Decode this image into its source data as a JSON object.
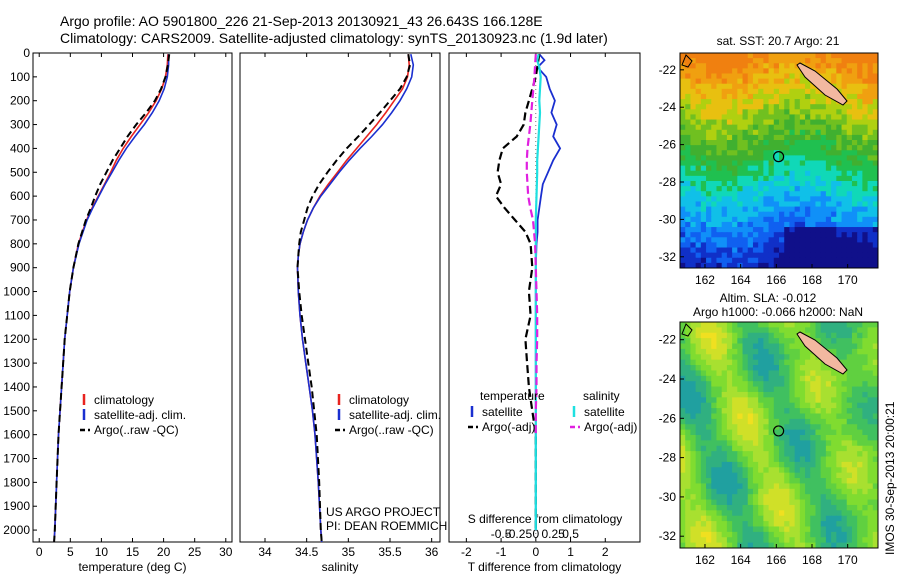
{
  "header": {
    "line1": "Argo profile: AO 5901800_226 21-Sep-2013 20130921_43 26.643S 166.128E",
    "line2": "Climatology: CARS2009. Satellite-adjusted climatology: synTS_20130923.nc (1.9d later)"
  },
  "colors": {
    "climatology": "#e8231f",
    "satellite_adj": "#1a2fd0",
    "argo": "#000000",
    "salinity_sat": "#1ee0e0",
    "salinity_argo": "#e020e0"
  },
  "chart_data": [
    {
      "type": "line",
      "xlabel": "temperature (deg C)",
      "ylabel": "",
      "xlim": [
        -1,
        31
      ],
      "ylim": [
        2050,
        0
      ],
      "x_ticks": [
        0,
        5,
        10,
        15,
        20,
        25,
        30
      ],
      "y_ticks": [
        0,
        100,
        200,
        300,
        400,
        500,
        600,
        700,
        800,
        900,
        1000,
        1100,
        1200,
        1300,
        1400,
        1500,
        1600,
        1700,
        1800,
        1900,
        2000
      ],
      "legend": [
        "climatology",
        "satellite-adj. clim.",
        "Argo(..raw -QC)"
      ],
      "series": [
        {
          "name": "climatology",
          "depth": [
            5,
            50,
            100,
            150,
            200,
            250,
            300,
            350,
            400,
            450,
            500,
            550,
            600,
            650,
            700,
            800,
            900,
            1000,
            1200,
            1400,
            1600,
            1800,
            2000,
            2050
          ],
          "values": [
            20.7,
            20.6,
            20.3,
            19.7,
            18.8,
            17.6,
            16.2,
            14.8,
            13.5,
            12.4,
            11.5,
            10.5,
            9.5,
            8.5,
            7.6,
            6.3,
            5.5,
            4.9,
            4.1,
            3.6,
            3.1,
            2.8,
            2.5,
            2.4
          ]
        },
        {
          "name": "satellite-adj. clim.",
          "depth": [
            5,
            50,
            100,
            150,
            200,
            250,
            300,
            350,
            400,
            450,
            500,
            550,
            600,
            650,
            700,
            800,
            900,
            1000,
            1200,
            1400,
            1600,
            1800,
            2000,
            2050
          ],
          "values": [
            20.8,
            20.8,
            20.6,
            20.1,
            19.3,
            18.2,
            16.9,
            15.4,
            14.0,
            12.8,
            11.7,
            10.6,
            9.6,
            8.6,
            7.7,
            6.4,
            5.5,
            4.9,
            4.1,
            3.6,
            3.1,
            2.8,
            2.5,
            2.4
          ]
        },
        {
          "name": "Argo(..raw -QC)",
          "depth": [
            5,
            50,
            100,
            150,
            200,
            250,
            300,
            350,
            400,
            450,
            500,
            550,
            600,
            650,
            700,
            800,
            900,
            1000,
            1200,
            1400,
            1600,
            1800,
            2000,
            2050
          ],
          "values": [
            20.9,
            20.7,
            20.3,
            19.6,
            18.6,
            17.2,
            15.6,
            14.2,
            13.0,
            11.8,
            10.8,
            9.8,
            9.0,
            8.3,
            7.5,
            6.3,
            5.5,
            4.9,
            4.1,
            3.6,
            3.1,
            2.8,
            2.5,
            2.4
          ]
        }
      ]
    },
    {
      "type": "line",
      "xlabel": "salinity",
      "ylabel": "",
      "xlim": [
        33.7,
        36.1
      ],
      "ylim": [
        2050,
        0
      ],
      "x_ticks": [
        34,
        34.5,
        35,
        35.5,
        36
      ],
      "legend": [
        "climatology",
        "satellite-adj. clim.",
        "Argo(..raw -QC)"
      ],
      "annotation": [
        "US ARGO PROJECT",
        "PI: DEAN ROEMMICH"
      ],
      "series": [
        {
          "name": "climatology",
          "depth": [
            5,
            50,
            100,
            150,
            200,
            250,
            300,
            350,
            400,
            450,
            500,
            550,
            600,
            650,
            700,
            750,
            800,
            850,
            900,
            1000,
            1100,
            1200,
            1300,
            1400,
            1500,
            1600,
            1800,
            2000,
            2050
          ],
          "values": [
            35.72,
            35.73,
            35.71,
            35.65,
            35.55,
            35.45,
            35.34,
            35.22,
            35.1,
            34.98,
            34.87,
            34.76,
            34.66,
            34.58,
            34.51,
            34.46,
            34.42,
            34.4,
            34.39,
            34.4,
            34.42,
            34.45,
            34.49,
            34.53,
            34.57,
            34.6,
            34.64,
            34.67,
            34.68
          ]
        },
        {
          "name": "satellite-adj. clim.",
          "depth": [
            5,
            50,
            100,
            150,
            200,
            250,
            300,
            350,
            400,
            450,
            500,
            550,
            600,
            650,
            700,
            750,
            800,
            850,
            900,
            1000,
            1100,
            1200,
            1300,
            1400,
            1500,
            1600,
            1800,
            2000,
            2050
          ],
          "values": [
            35.75,
            35.78,
            35.76,
            35.7,
            35.62,
            35.52,
            35.41,
            35.28,
            35.14,
            35.01,
            34.89,
            34.78,
            34.67,
            34.58,
            34.51,
            34.46,
            34.42,
            34.4,
            34.39,
            34.4,
            34.42,
            34.45,
            34.49,
            34.53,
            34.57,
            34.6,
            34.64,
            34.67,
            34.68
          ]
        },
        {
          "name": "Argo(..raw -QC)",
          "depth": [
            5,
            50,
            100,
            150,
            200,
            250,
            300,
            350,
            400,
            450,
            500,
            550,
            600,
            650,
            700,
            750,
            800,
            850,
            900,
            1000,
            1100,
            1200,
            1300,
            1400,
            1500,
            1600,
            1800,
            2000,
            2050
          ],
          "values": [
            35.72,
            35.74,
            35.7,
            35.62,
            35.5,
            35.38,
            35.25,
            35.12,
            34.98,
            34.86,
            34.75,
            34.65,
            34.57,
            34.51,
            34.47,
            34.43,
            34.41,
            34.4,
            34.39,
            34.41,
            34.44,
            34.48,
            34.52,
            34.56,
            34.59,
            34.62,
            34.65,
            34.67,
            34.68
          ]
        }
      ]
    },
    {
      "type": "line",
      "xlabel": "T difference from climatology",
      "top_label": "S difference from climatology",
      "xlim": [
        -2.5,
        3.0
      ],
      "ylim": [
        2050,
        0
      ],
      "x_ticks": [
        -2,
        -1,
        0,
        1,
        2
      ],
      "x_tick_labels": [
        "-2",
        "-1",
        "0",
        "1",
        "2"
      ],
      "s_ticks": [
        -0.5,
        -0.25,
        0,
        0.25,
        0.5
      ],
      "s_tick_labels": [
        "-0.5",
        "-0.25",
        "0",
        "0.25",
        "0.5"
      ],
      "legend_temperature": {
        "heading": "temperature",
        "items": [
          "satellite",
          "Argo(-adj)"
        ]
      },
      "legend_salinity": {
        "heading": "salinity",
        "items": [
          "satellite",
          "Argo(-adj)"
        ]
      },
      "series": [
        {
          "name": "temperature satellite",
          "depth": [
            5,
            30,
            60,
            100,
            150,
            200,
            250,
            300,
            350,
            400,
            450,
            500,
            550,
            600,
            650,
            700,
            750,
            800,
            900,
            1000,
            1200,
            1400,
            1600,
            1800,
            2000
          ],
          "values": [
            0.1,
            0.25,
            0.05,
            0.3,
            0.4,
            0.55,
            0.45,
            0.6,
            0.5,
            0.7,
            0.5,
            0.35,
            0.2,
            0.15,
            0.1,
            0.05,
            0.05,
            0.02,
            0.0,
            0.0,
            0.0,
            0.0,
            0.0,
            0.0,
            0.0
          ]
        },
        {
          "name": "temperature Argo(-adj)",
          "depth": [
            5,
            50,
            100,
            150,
            200,
            250,
            300,
            350,
            400,
            450,
            500,
            550,
            600,
            650,
            700,
            750,
            800,
            900,
            1000,
            1100,
            1200,
            1300,
            1400,
            1500,
            1600,
            1800,
            2000
          ],
          "values": [
            0.1,
            0.05,
            0.0,
            -0.1,
            -0.2,
            -0.3,
            -0.35,
            -0.55,
            -0.95,
            -1.05,
            -1.1,
            -1.0,
            -1.15,
            -0.9,
            -0.6,
            -0.3,
            -0.15,
            -0.1,
            -0.2,
            -0.15,
            -0.3,
            -0.25,
            -0.2,
            -0.1,
            0.0,
            0.0,
            0.0
          ]
        },
        {
          "name": "salinity satellite",
          "depth": [
            5,
            30,
            60,
            100,
            150,
            200,
            250,
            300,
            350,
            400,
            450,
            500,
            600,
            700,
            800,
            900,
            1000,
            1200,
            1400,
            1600,
            1800,
            2000
          ],
          "values": [
            0.04,
            0.02,
            0.05,
            0.07,
            0.06,
            0.05,
            0.06,
            0.05,
            0.04,
            0.03,
            0.02,
            0.02,
            0.01,
            0.0,
            0.0,
            0.0,
            0.0,
            0.0,
            0.0,
            0.0,
            0.0,
            0.0
          ]
        },
        {
          "name": "salinity Argo(-adj)",
          "depth": [
            5,
            50,
            100,
            200,
            300,
            350,
            400,
            450,
            500,
            550,
            600,
            650,
            700,
            800,
            900,
            1000,
            1100,
            1200,
            1300,
            1400,
            1500,
            1600
          ],
          "values": [
            0.0,
            -0.01,
            -0.02,
            -0.05,
            -0.08,
            -0.1,
            -0.12,
            -0.13,
            -0.13,
            -0.12,
            -0.11,
            -0.08,
            -0.04,
            -0.01,
            0.0,
            0.01,
            0.02,
            0.02,
            0.01,
            0.01,
            0.0,
            0.0
          ]
        }
      ]
    }
  ],
  "maps": {
    "sst": {
      "title": "sat. SST: 20.7 Argo: 21",
      "lon_ticks": [
        "162",
        "164",
        "166",
        "168",
        "170"
      ],
      "lat_ticks": [
        "-22",
        "-24",
        "-26",
        "-28",
        "-30",
        "-32"
      ]
    },
    "sla": {
      "title_line1": "Altim. SLA: -0.012",
      "title_line2": "Argo h1000: -0.066 h2000: NaN",
      "lon_ticks": [
        "162",
        "164",
        "166",
        "168",
        "170"
      ],
      "lat_ticks": [
        "-22",
        "-24",
        "-26",
        "-28",
        "-30",
        "-32"
      ]
    }
  },
  "side_text": "IMOS 30-Sep-2013 20:00:21"
}
